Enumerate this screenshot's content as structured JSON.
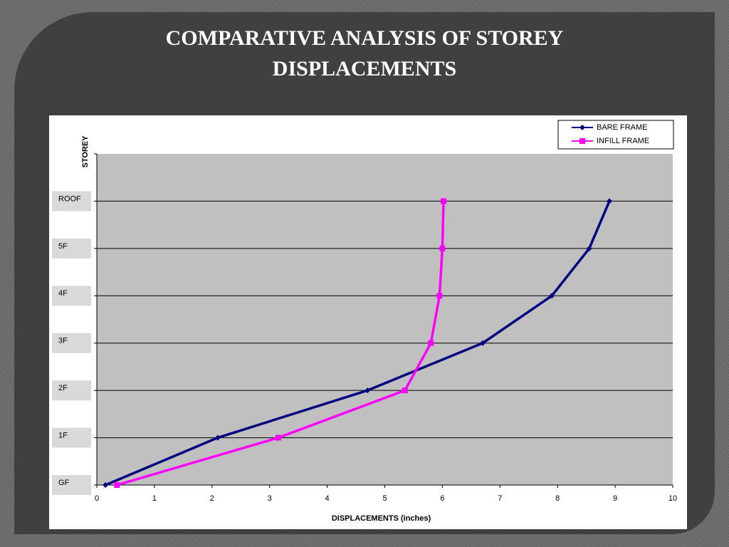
{
  "chart_data": {
    "type": "line",
    "title": "COMPARATIVE ANALYSIS OF STOREY DISPLACEMENTS",
    "categories": [
      "GF",
      "1F",
      "2F",
      "3F",
      "4F",
      "5F",
      "ROOF"
    ],
    "series": [
      {
        "name": "BARE FRAME",
        "color": "#000080",
        "marker": "diamond",
        "values": [
          0.15,
          2.1,
          4.7,
          6.7,
          7.9,
          8.55,
          8.9
        ]
      },
      {
        "name": "INFILL FRAME",
        "color": "#ff00ff",
        "marker": "square",
        "values": [
          0.35,
          3.15,
          5.35,
          5.8,
          5.95,
          6.0,
          6.02
        ]
      }
    ],
    "xlim": [
      0,
      10
    ],
    "xticks": [
      0,
      1,
      2,
      3,
      4,
      5,
      6,
      7,
      8,
      9,
      10
    ],
    "x_label": "DISPLACEMENTS (inches)",
    "y_label": "STOREY",
    "grid": true,
    "legend": "top-right"
  }
}
